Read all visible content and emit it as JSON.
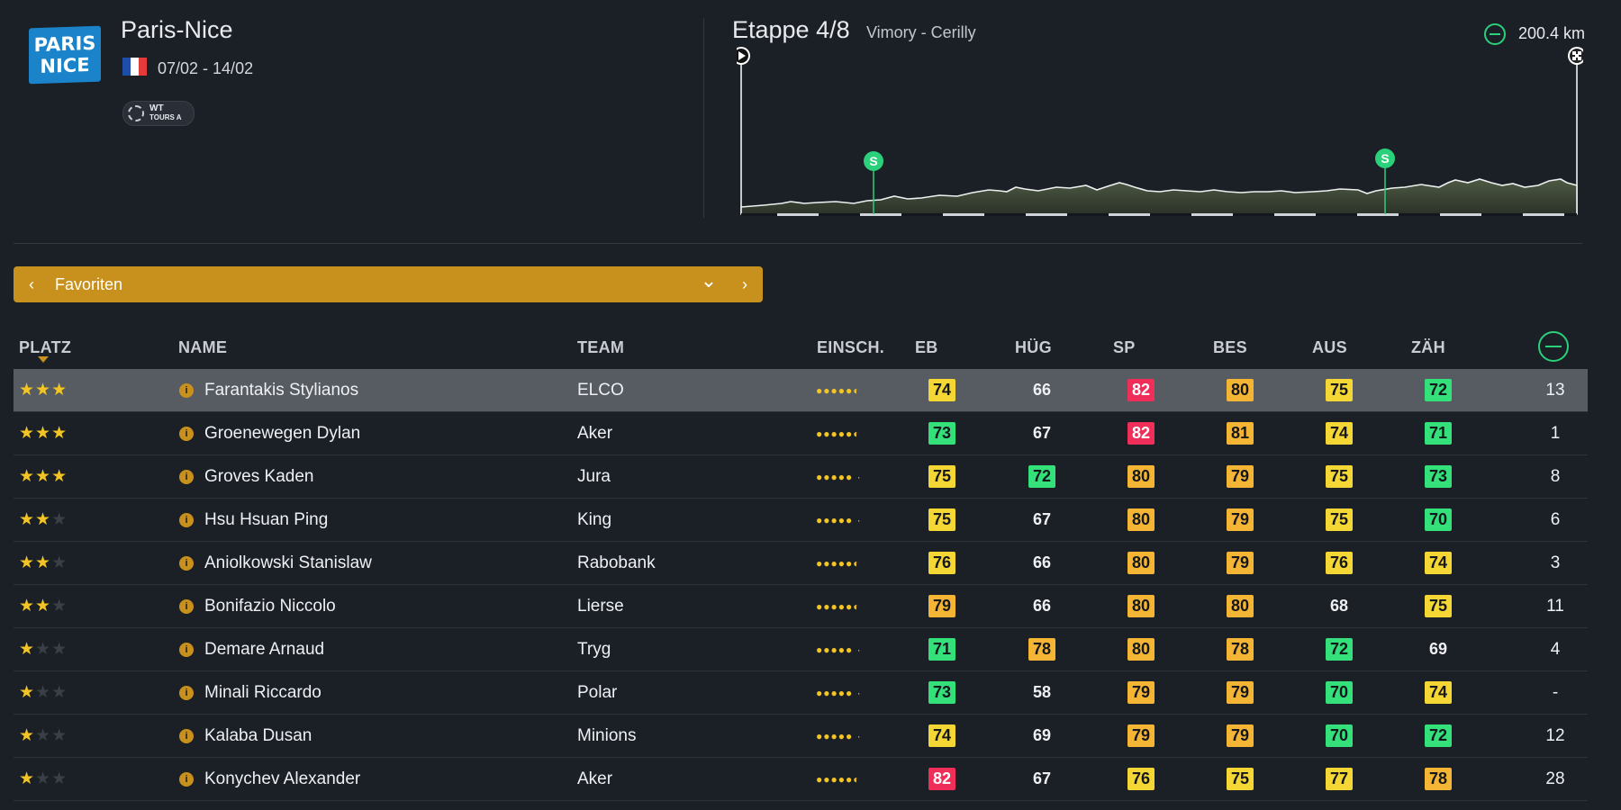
{
  "race": {
    "logo_line1": "PARIS",
    "logo_line2": "NICE",
    "title": "Paris-Nice",
    "dates": "07/02 - 14/02",
    "badge_line1": "WT",
    "badge_line2": "TOURS A",
    "flag_colors": [
      "#1f4ea8",
      "#ffffff",
      "#e53a3a"
    ]
  },
  "stage": {
    "title": "Etappe 4/8",
    "route": "Vimory - Cerilly",
    "distance": "200.4 km",
    "sprint_label": "S",
    "sprint_positions_km": [
      32,
      154.5
    ]
  },
  "selector": {
    "prev": "‹",
    "label": "Favoriten",
    "dropdown": "⌄",
    "next": "›"
  },
  "columns": {
    "platz": "PLATZ",
    "name": "NAME",
    "team": "TEAM",
    "einsch": "EINSCH.",
    "eb": "EB",
    "hug": "HÜG",
    "sp": "SP",
    "bes": "BES",
    "aus": "AUS",
    "zah": "ZÄH"
  },
  "colors": {
    "accent": "#c8911d",
    "yellow": "#f4d634",
    "orange": "#f4b434",
    "green": "#33e07a",
    "red": "#ef2f5a"
  },
  "riders": [
    {
      "stars": 3,
      "name": "Farantakis Stylianos",
      "team": "ELCO",
      "dots": "●●●●●◐",
      "eb": "74",
      "eb_c": "y",
      "hug": "66",
      "hug_c": "",
      "sp": "82",
      "sp_c": "r",
      "bes": "80",
      "bes_c": "o",
      "aus": "75",
      "aus_c": "y",
      "zah": "72",
      "zah_c": "g",
      "rank": "13"
    },
    {
      "stars": 3,
      "name": "Groenewegen Dylan",
      "team": "Aker",
      "dots": "●●●●●◐",
      "eb": "73",
      "eb_c": "g",
      "hug": "67",
      "hug_c": "",
      "sp": "82",
      "sp_c": "r",
      "bes": "81",
      "bes_c": "o",
      "aus": "74",
      "aus_c": "y",
      "zah": "71",
      "zah_c": "g",
      "rank": "1"
    },
    {
      "stars": 3,
      "name": "Groves Kaden",
      "team": "Jura",
      "dots": "●●●●● ·",
      "eb": "75",
      "eb_c": "y",
      "hug": "72",
      "hug_c": "g",
      "sp": "80",
      "sp_c": "o",
      "bes": "79",
      "bes_c": "o",
      "aus": "75",
      "aus_c": "y",
      "zah": "73",
      "zah_c": "g",
      "rank": "8"
    },
    {
      "stars": 2,
      "name": "Hsu Hsuan Ping",
      "team": "King",
      "dots": "●●●●● ·",
      "eb": "75",
      "eb_c": "y",
      "hug": "67",
      "hug_c": "",
      "sp": "80",
      "sp_c": "o",
      "bes": "79",
      "bes_c": "o",
      "aus": "75",
      "aus_c": "y",
      "zah": "70",
      "zah_c": "g",
      "rank": "6"
    },
    {
      "stars": 2,
      "name": "Aniolkowski Stanislaw",
      "team": "Rabobank",
      "dots": "●●●●●◐",
      "eb": "76",
      "eb_c": "y",
      "hug": "66",
      "hug_c": "",
      "sp": "80",
      "sp_c": "o",
      "bes": "79",
      "bes_c": "o",
      "aus": "76",
      "aus_c": "y",
      "zah": "74",
      "zah_c": "y",
      "rank": "3"
    },
    {
      "stars": 2,
      "name": "Bonifazio Niccolo",
      "team": "Lierse",
      "dots": "●●●●●◐",
      "eb": "79",
      "eb_c": "o",
      "hug": "66",
      "hug_c": "",
      "sp": "80",
      "sp_c": "o",
      "bes": "80",
      "bes_c": "o",
      "aus": "68",
      "aus_c": "",
      "zah": "75",
      "zah_c": "y",
      "rank": "11"
    },
    {
      "stars": 1,
      "name": "Demare Arnaud",
      "team": "Tryg",
      "dots": "●●●●● ·",
      "eb": "71",
      "eb_c": "g",
      "hug": "78",
      "hug_c": "o",
      "sp": "80",
      "sp_c": "o",
      "bes": "78",
      "bes_c": "o",
      "aus": "72",
      "aus_c": "g",
      "zah": "69",
      "zah_c": "",
      "rank": "4"
    },
    {
      "stars": 1,
      "name": "Minali Riccardo",
      "team": "Polar",
      "dots": "●●●●● ·",
      "eb": "73",
      "eb_c": "g",
      "hug": "58",
      "hug_c": "",
      "sp": "79",
      "sp_c": "o",
      "bes": "79",
      "bes_c": "o",
      "aus": "70",
      "aus_c": "g",
      "zah": "74",
      "zah_c": "y",
      "rank": "-"
    },
    {
      "stars": 1,
      "name": "Kalaba Dusan",
      "team": "Minions",
      "dots": "●●●●● ·",
      "eb": "74",
      "eb_c": "y",
      "hug": "69",
      "hug_c": "",
      "sp": "79",
      "sp_c": "o",
      "bes": "79",
      "bes_c": "o",
      "aus": "70",
      "aus_c": "g",
      "zah": "72",
      "zah_c": "g",
      "rank": "12"
    },
    {
      "stars": 1,
      "name": "Konychev Alexander",
      "team": "Aker",
      "dots": "●●●●●◐",
      "eb": "82",
      "eb_c": "r",
      "hug": "67",
      "hug_c": "",
      "sp": "76",
      "sp_c": "y",
      "bes": "75",
      "bes_c": "y",
      "aus": "77",
      "aus_c": "y",
      "zah": "78",
      "zah_c": "o",
      "rank": "28"
    }
  ]
}
